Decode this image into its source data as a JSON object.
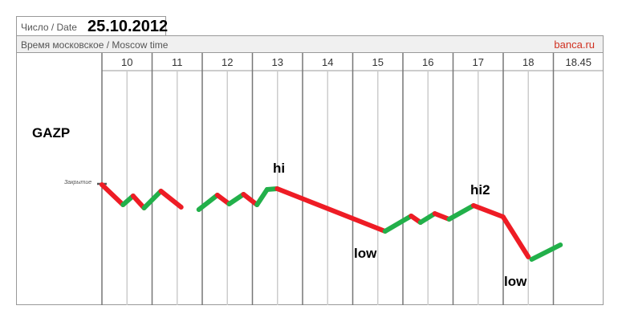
{
  "header": {
    "date_label": "Число / Date",
    "date_value": "25.10.2012",
    "time_label": "Время московское / Moscow time",
    "brand": "banca.ru"
  },
  "chart_data": {
    "type": "line",
    "ticker": "GAZP",
    "hours": [
      "10",
      "11",
      "12",
      "13",
      "14",
      "15",
      "16",
      "17",
      "18",
      "18.45"
    ],
    "reference_label": "Закрытие",
    "colors": {
      "up": "#22b04a",
      "down": "#ee1c25"
    },
    "segments": [
      [
        [
          "10:00",
          0
        ],
        [
          "10:25",
          -25
        ],
        [
          "10:37",
          -14
        ],
        [
          "10:50",
          -29
        ],
        [
          "11:10",
          -8
        ],
        [
          "11:34",
          -28
        ]
      ],
      [
        [
          "11:55",
          -31
        ],
        [
          "12:17",
          -13
        ],
        [
          "12:31",
          -24
        ],
        [
          "12:48",
          -12
        ],
        [
          "13:04",
          -25
        ],
        [
          "13:16",
          -6
        ],
        [
          "13:28",
          -5
        ],
        [
          "15:36",
          -58
        ],
        [
          "16:07",
          -39
        ],
        [
          "16:18",
          -47
        ],
        [
          "16:35",
          -36
        ],
        [
          "16:52",
          -43
        ],
        [
          "17:21",
          -26
        ],
        [
          "17:56",
          -40
        ],
        [
          "18:26",
          -90
        ]
      ],
      [
        [
          "18:30",
          -93
        ],
        [
          "19:04",
          -75
        ]
      ]
    ],
    "annotations": [
      "hi",
      "low",
      "hi2",
      "low"
    ]
  }
}
